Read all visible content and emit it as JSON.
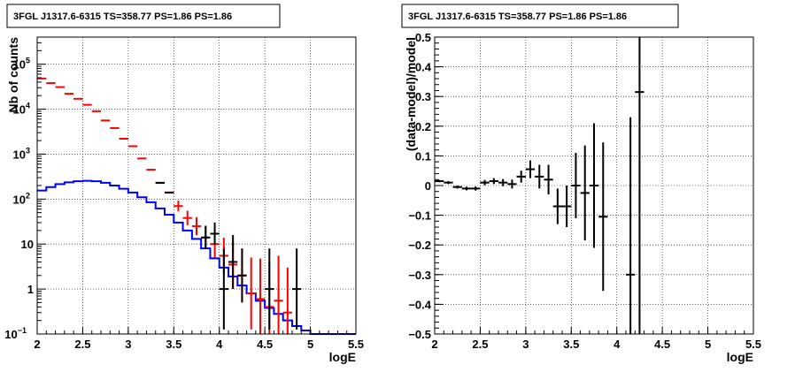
{
  "chart_data": [
    {
      "type": "scatter",
      "title": "3FGL J1317.6-6315 TS=358.77 PS=1.86 PS=1.86",
      "xlabel": "logE",
      "ylabel": "Nb of counts",
      "xlim": [
        2,
        5.5
      ],
      "ylim": [
        0.1,
        400000
      ],
      "yscale": "log",
      "grid": true,
      "x_ticks": [
        "2",
        "2.5",
        "3",
        "3.5",
        "4",
        "4.5",
        "5",
        "5.5"
      ],
      "y_ticks": [
        {
          "v": 0.1,
          "base": "10",
          "exp": "−1"
        },
        {
          "v": 1,
          "base": "1",
          "exp": ""
        },
        {
          "v": 10,
          "base": "10",
          "exp": ""
        },
        {
          "v": 100,
          "base": "10",
          "exp": "2"
        },
        {
          "v": 1000,
          "base": "10",
          "exp": "3"
        },
        {
          "v": 10000,
          "base": "10",
          "exp": "4"
        },
        {
          "v": 100000,
          "base": "10",
          "exp": "5"
        }
      ],
      "series": [
        {
          "color": "#0000ff",
          "style": "step",
          "bin_width": 0.1,
          "points": [
            [
              2.05,
              155
            ],
            [
              2.15,
              185
            ],
            [
              2.25,
              215
            ],
            [
              2.35,
              235
            ],
            [
              2.45,
              250
            ],
            [
              2.55,
              255
            ],
            [
              2.65,
              250
            ],
            [
              2.75,
              230
            ],
            [
              2.85,
              200
            ],
            [
              2.95,
              170
            ],
            [
              3.05,
              140
            ],
            [
              3.15,
              110
            ],
            [
              3.25,
              85
            ],
            [
              3.35,
              62
            ],
            [
              3.45,
              45
            ],
            [
              3.55,
              30
            ],
            [
              3.65,
              20
            ],
            [
              3.75,
              13
            ],
            [
              3.85,
              8
            ],
            [
              3.95,
              4.8
            ],
            [
              4.05,
              3.0
            ],
            [
              4.15,
              1.9
            ],
            [
              4.25,
              1.2
            ],
            [
              4.35,
              0.8
            ],
            [
              4.45,
              0.55
            ],
            [
              4.55,
              0.38
            ],
            [
              4.65,
              0.28
            ],
            [
              4.75,
              0.2
            ],
            [
              4.85,
              0.15
            ],
            [
              4.95,
              0.12
            ],
            [
              5.05,
              0.1
            ],
            [
              5.15,
              0.1
            ],
            [
              5.25,
              0.1
            ],
            [
              5.35,
              0.1
            ],
            [
              5.45,
              0.1
            ]
          ]
        },
        {
          "color": "#ff0000",
          "style": "errorbar",
          "bin_width": 0.1,
          "points": [
            [
              2.05,
              48000,
              0
            ],
            [
              2.15,
              38000,
              0
            ],
            [
              2.25,
              31000,
              0
            ],
            [
              2.35,
              22000,
              0
            ],
            [
              2.45,
              17000,
              0
            ],
            [
              2.55,
              12500,
              0
            ],
            [
              2.65,
              9000,
              0
            ],
            [
              2.75,
              5600,
              0
            ],
            [
              2.85,
              3800,
              0
            ],
            [
              2.95,
              2200,
              0
            ],
            [
              3.05,
              1500,
              0
            ],
            [
              3.15,
              800,
              0
            ],
            [
              3.25,
              450,
              0
            ],
            [
              3.35,
              230,
              0
            ],
            [
              3.45,
              140,
              0
            ],
            [
              3.55,
              70,
              0.12
            ],
            [
              3.65,
              38,
              0.16
            ],
            [
              3.75,
              25,
              0.2
            ],
            [
              3.85,
              14,
              0.26
            ],
            [
              3.95,
              10,
              0.3
            ],
            [
              4.05,
              5.5,
              0.4
            ],
            [
              4.15,
              3.5,
              0.5
            ],
            [
              4.25,
              2.0,
              0.6
            ],
            [
              4.35,
              0.8,
              0.8
            ],
            [
              4.45,
              0.6,
              0.9
            ],
            [
              4.55,
              0.4,
              1.0
            ],
            [
              4.65,
              0.55,
              1.0
            ],
            [
              4.75,
              0.3,
              1.0
            ]
          ]
        },
        {
          "color": "#000000",
          "style": "errorbar",
          "bin_width": 0.1,
          "points": [
            [
              3.35,
              230,
              0
            ],
            [
              3.45,
              140,
              0
            ],
            [
              3.85,
              14,
              0.26
            ],
            [
              3.95,
              17,
              0.25
            ],
            [
              4.05,
              1,
              0.9
            ],
            [
              4.15,
              4,
              0.6
            ],
            [
              4.25,
              2,
              0.6
            ],
            [
              4.55,
              1,
              0.9
            ],
            [
              4.85,
              1,
              0.9
            ]
          ]
        }
      ]
    },
    {
      "type": "scatter",
      "title": "3FGL J1317.6-6315 TS=358.77 PS=1.86 PS=1.86",
      "xlabel": "logE",
      "ylabel": "(data-model)/model",
      "xlim": [
        2,
        5.5
      ],
      "ylim": [
        -0.5,
        0.5
      ],
      "yscale": "linear",
      "grid": true,
      "x_ticks": [
        "2",
        "2.5",
        "3",
        "3.5",
        "4",
        "4.5",
        "5",
        "5.5"
      ],
      "y_ticks": [
        {
          "v": -0.5,
          "base": "−0.5",
          "exp": ""
        },
        {
          "v": -0.4,
          "base": "−0.4",
          "exp": ""
        },
        {
          "v": -0.3,
          "base": "−0.3",
          "exp": ""
        },
        {
          "v": -0.2,
          "base": "−0.2",
          "exp": ""
        },
        {
          "v": -0.1,
          "base": "−0.1",
          "exp": ""
        },
        {
          "v": 0,
          "base": "0",
          "exp": ""
        },
        {
          "v": 0.1,
          "base": "0.1",
          "exp": ""
        },
        {
          "v": 0.2,
          "base": "0.2",
          "exp": ""
        },
        {
          "v": 0.3,
          "base": "0.3",
          "exp": ""
        },
        {
          "v": 0.4,
          "base": "0.4",
          "exp": ""
        },
        {
          "v": 0.5,
          "base": "0.5",
          "exp": ""
        }
      ],
      "series": [
        {
          "color": "#000000",
          "style": "errorbar",
          "bin_width": 0.1,
          "points": [
            [
              2.05,
              0.015,
              0.004
            ],
            [
              2.15,
              0.01,
              0.005
            ],
            [
              2.25,
              -0.005,
              0.005
            ],
            [
              2.35,
              -0.01,
              0.006
            ],
            [
              2.45,
              -0.01,
              0.007
            ],
            [
              2.55,
              0.01,
              0.009
            ],
            [
              2.65,
              0.015,
              0.01
            ],
            [
              2.75,
              0.01,
              0.012
            ],
            [
              2.85,
              0.005,
              0.015
            ],
            [
              2.95,
              0.03,
              0.02
            ],
            [
              3.05,
              0.055,
              0.03
            ],
            [
              3.15,
              0.03,
              0.04
            ],
            [
              3.25,
              0.02,
              0.05
            ],
            [
              3.35,
              -0.07,
              0.06
            ],
            [
              3.45,
              -0.07,
              0.07
            ],
            [
              3.55,
              0.0,
              0.11
            ],
            [
              3.65,
              -0.025,
              0.16
            ],
            [
              3.75,
              0.0,
              0.21
            ],
            [
              3.85,
              -0.105,
              0.25
            ],
            [
              4.15,
              -0.3,
              0.53
            ],
            [
              4.25,
              0.315,
              0.9
            ]
          ]
        }
      ]
    }
  ]
}
